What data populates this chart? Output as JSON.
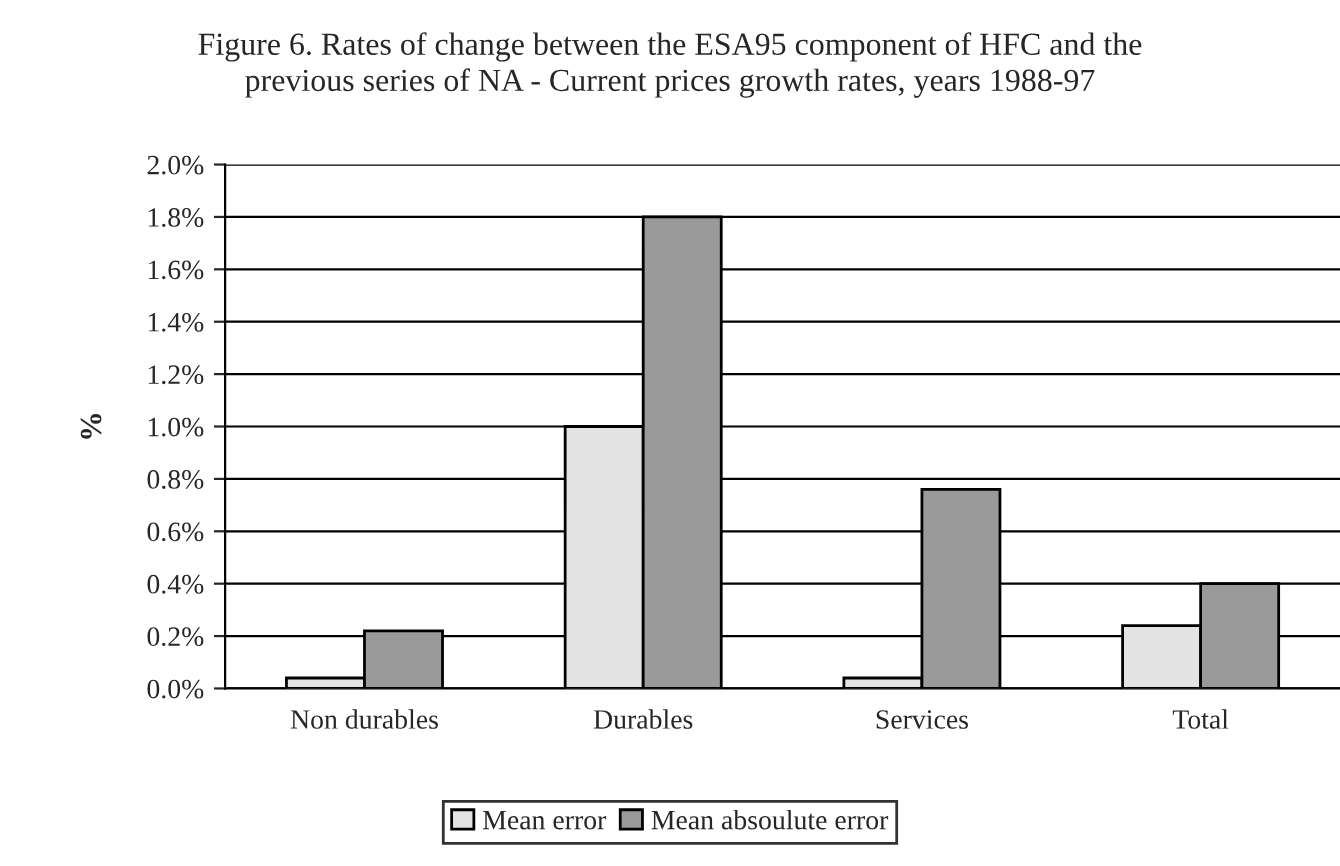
{
  "chart_data": {
    "type": "bar",
    "title": "Figure 6. Rates of change between the ESA95 component of HFC and the\nprevious series of NA - Current prices growth rates, years 1988-97",
    "ylabel": "%",
    "categories": [
      "Non durables",
      "Durables",
      "Services",
      "Total"
    ],
    "series": [
      {
        "name": "Mean error",
        "color": "#e3e3e3",
        "values": [
          0.04,
          1.0,
          0.04,
          0.24
        ]
      },
      {
        "name": "Mean absoulute error",
        "color": "#9a9a9a",
        "values": [
          0.22,
          1.8,
          0.76,
          0.4
        ]
      }
    ],
    "ylim": [
      0,
      2.0
    ],
    "yticks": [
      {
        "value": 0,
        "label": "0.0%"
      },
      {
        "value": 0.2,
        "label": "0.2%"
      },
      {
        "value": 0.4,
        "label": "0.4%"
      },
      {
        "value": 0.6,
        "label": "0.6%"
      },
      {
        "value": 0.8,
        "label": "0.8%"
      },
      {
        "value": 1.0,
        "label": "1.0%"
      },
      {
        "value": 1.2,
        "label": "1.2%"
      },
      {
        "value": 1.4,
        "label": "1.4%"
      },
      {
        "value": 1.6,
        "label": "1.6%"
      },
      {
        "value": 1.8,
        "label": "1.8%"
      },
      {
        "value": 2.0,
        "label": "2.0%"
      }
    ],
    "grid": "y",
    "legend": "bottom"
  }
}
